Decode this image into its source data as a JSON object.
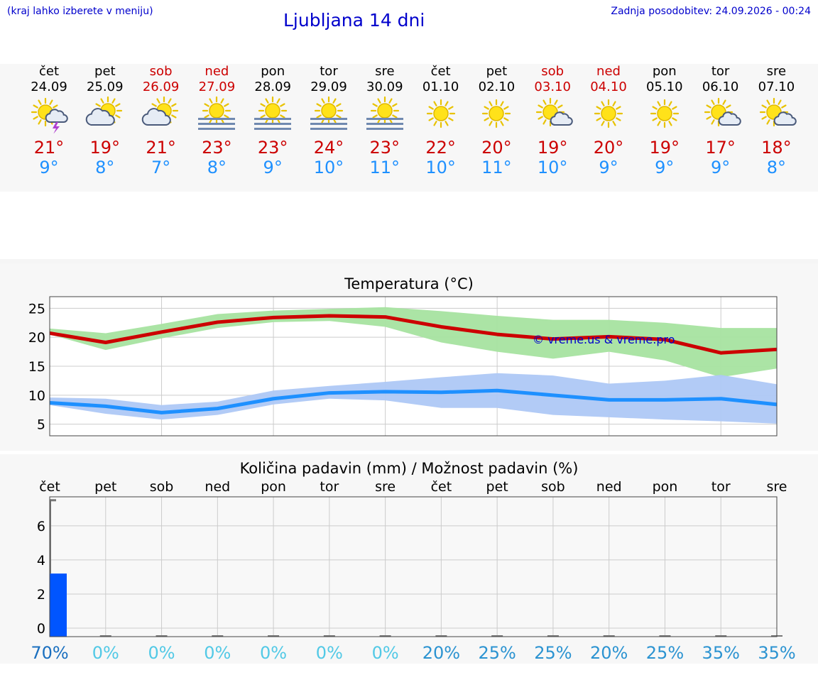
{
  "header": {
    "hint": "(kraj lahko izberete v meniju)",
    "title": "Ljubljana 14 dni",
    "updated": "Zadnja posodobitev: 24.09.2026 - 00:24"
  },
  "days": [
    {
      "name": "čet",
      "date": "24.09",
      "weekend": false,
      "icon": "sun-cloud-lightning-icon",
      "max": "21°",
      "min": "9°"
    },
    {
      "name": "pet",
      "date": "25.09",
      "weekend": false,
      "icon": "sun-cloud-icon",
      "max": "19°",
      "min": "8°"
    },
    {
      "name": "sob",
      "date": "26.09",
      "weekend": true,
      "icon": "sun-cloud-icon",
      "max": "21°",
      "min": "7°"
    },
    {
      "name": "ned",
      "date": "27.09",
      "weekend": true,
      "icon": "sun-fog-icon",
      "max": "23°",
      "min": "8°"
    },
    {
      "name": "pon",
      "date": "28.09",
      "weekend": false,
      "icon": "sun-fog-icon",
      "max": "23°",
      "min": "9°"
    },
    {
      "name": "tor",
      "date": "29.09",
      "weekend": false,
      "icon": "sun-fog-icon",
      "max": "24°",
      "min": "10°"
    },
    {
      "name": "sre",
      "date": "30.09",
      "weekend": false,
      "icon": "sun-fog-icon",
      "max": "23°",
      "min": "11°"
    },
    {
      "name": "čet",
      "date": "01.10",
      "weekend": false,
      "icon": "sun-icon",
      "max": "22°",
      "min": "10°"
    },
    {
      "name": "pet",
      "date": "02.10",
      "weekend": false,
      "icon": "sun-icon",
      "max": "20°",
      "min": "11°"
    },
    {
      "name": "sob",
      "date": "03.10",
      "weekend": true,
      "icon": "sun-small-cloud-icon",
      "max": "19°",
      "min": "10°"
    },
    {
      "name": "ned",
      "date": "04.10",
      "weekend": true,
      "icon": "sun-icon",
      "max": "20°",
      "min": "9°"
    },
    {
      "name": "pon",
      "date": "05.10",
      "weekend": false,
      "icon": "sun-icon",
      "max": "19°",
      "min": "9°"
    },
    {
      "name": "tor",
      "date": "06.10",
      "weekend": false,
      "icon": "sun-small-cloud-icon",
      "max": "17°",
      "min": "9°"
    },
    {
      "name": "sre",
      "date": "07.10",
      "weekend": false,
      "icon": "sun-small-cloud-icon",
      "max": "18°",
      "min": "8°"
    }
  ],
  "colors": {
    "max": "#cc0000",
    "min": "#1e90ff",
    "maxBand": "#a6e3a0",
    "minBand": "#aec8f5",
    "bar": "#0055ff"
  },
  "chart_data": [
    {
      "type": "line",
      "title": "Temperatura (°C)",
      "ylim": [
        3,
        27
      ],
      "yticks": [
        5,
        10,
        15,
        20,
        25
      ],
      "grid": true,
      "watermark": "© vreme.us & vreme.pro",
      "series": [
        {
          "values": [
            20.7,
            19.1,
            20.9,
            22.6,
            23.4,
            23.7,
            23.5,
            21.8,
            20.5,
            19.7,
            20.1,
            19.6,
            17.3,
            17.9
          ]
        },
        {
          "values": [
            8.7,
            8.1,
            7.0,
            7.7,
            9.4,
            10.4,
            10.6,
            10.5,
            10.8,
            10.0,
            9.2,
            9.2,
            9.4,
            8.4
          ]
        }
      ],
      "bands": [
        {
          "low": [
            20.5,
            17.8,
            19.8,
            21.6,
            22.6,
            22.8,
            21.8,
            19.1,
            17.5,
            16.3,
            17.5,
            16.0,
            13.1,
            14.6
          ],
          "high": [
            21.5,
            20.7,
            22.3,
            24.0,
            24.6,
            24.9,
            25.2,
            24.5,
            23.7,
            23.0,
            23.0,
            22.5,
            21.6,
            21.6
          ]
        },
        {
          "low": [
            8.3,
            6.8,
            5.8,
            6.6,
            8.4,
            9.4,
            9.1,
            7.8,
            7.8,
            6.6,
            6.2,
            5.8,
            5.5,
            5.1
          ],
          "high": [
            9.6,
            9.4,
            8.3,
            8.9,
            10.8,
            11.6,
            12.3,
            13.1,
            13.8,
            13.4,
            12.0,
            12.5,
            13.5,
            11.9
          ]
        }
      ]
    },
    {
      "type": "bar",
      "title": "Količina padavin (mm) / Možnost padavin (%)",
      "categories": [
        "čet",
        "pet",
        "sob",
        "ned",
        "pon",
        "tor",
        "sre",
        "čet",
        "pet",
        "sob",
        "ned",
        "pon",
        "tor",
        "sre"
      ],
      "values": [
        3.2,
        0,
        0,
        0,
        0,
        0,
        0,
        0,
        0,
        0,
        0,
        0,
        0,
        0
      ],
      "ranges_high": [
        7.5,
        0,
        0,
        0,
        0,
        0,
        0,
        0,
        0,
        0,
        0,
        0,
        0,
        0
      ],
      "ylim": [
        -0.5,
        7.7
      ],
      "yticks": [
        0,
        2,
        4,
        6
      ],
      "probability": [
        "70%",
        "0%",
        "0%",
        "0%",
        "0%",
        "0%",
        "0%",
        "20%",
        "25%",
        "25%",
        "20%",
        "25%",
        "35%",
        "35%"
      ]
    }
  ]
}
